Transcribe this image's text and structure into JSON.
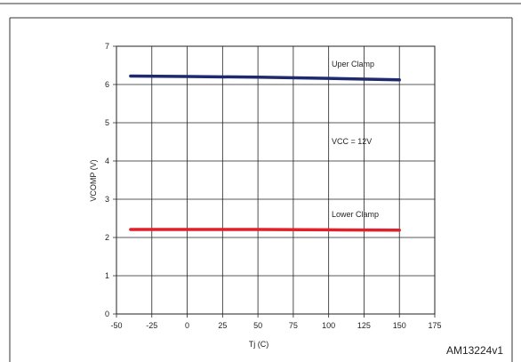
{
  "chart_data": {
    "type": "line",
    "title": "",
    "xlabel": "Tj (C)",
    "ylabel": "VCOMP (V)",
    "xlim": [
      -50,
      175
    ],
    "ylim": [
      0,
      7
    ],
    "x_ticks": [
      "-50",
      "-25",
      "0",
      "25",
      "50",
      "75",
      "100",
      "125",
      "150",
      "175"
    ],
    "y_ticks": [
      "0",
      "1",
      "2",
      "3",
      "4",
      "5",
      "6",
      "7"
    ],
    "grid": true,
    "series": [
      {
        "name": "Uper Clamp",
        "color": "#1f2a6e",
        "x": [
          -40,
          0,
          50,
          100,
          150
        ],
        "y": [
          6.22,
          6.21,
          6.19,
          6.16,
          6.12
        ]
      },
      {
        "name": "Lower Clamp",
        "color": "#e0202a",
        "x": [
          -40,
          0,
          50,
          100,
          150
        ],
        "y": [
          2.21,
          2.21,
          2.21,
          2.2,
          2.19
        ]
      }
    ],
    "annotations": [
      "Uper Clamp",
      "VCC = 12V",
      "Lower Clamp"
    ]
  },
  "figure_id": "AM13224v1"
}
